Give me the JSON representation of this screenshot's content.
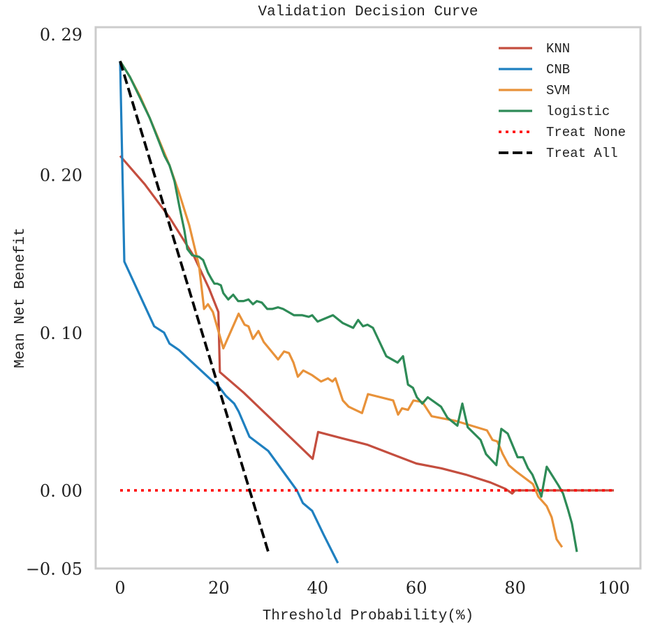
{
  "chart_data": {
    "type": "line",
    "title": "Validation Decision Curve",
    "xlabel": "Threshold Probability(%)",
    "ylabel": "Mean Net Benefit",
    "xlim": [
      -5,
      106
    ],
    "ylim": [
      -0.05,
      0.29
    ],
    "xticks": [
      0,
      20,
      40,
      60,
      80,
      100
    ],
    "xtick_labels": [
      "0",
      "20",
      "40",
      "60",
      "80",
      "100"
    ],
    "yticks": [
      -0.05,
      0.0,
      0.1,
      0.2,
      0.29
    ],
    "ytick_labels": [
      "−0. 05",
      "0. 00",
      "0. 10",
      "0. 20",
      "0. 29"
    ],
    "grid": false,
    "legend_position": "top-right",
    "series": [
      {
        "name": "KNN",
        "color": "#c44e3f",
        "style": "solid",
        "points": [
          [
            0,
            0.212
          ],
          [
            5,
            0.194
          ],
          [
            10,
            0.173
          ],
          [
            15,
            0.148
          ],
          [
            18,
            0.128
          ],
          [
            19.9,
            0.113
          ],
          [
            20.2,
            0.075
          ],
          [
            25,
            0.062
          ],
          [
            30,
            0.047
          ],
          [
            35,
            0.032
          ],
          [
            39,
            0.02
          ],
          [
            40.1,
            0.037
          ],
          [
            45,
            0.033
          ],
          [
            50,
            0.029
          ],
          [
            55,
            0.023
          ],
          [
            60,
            0.017
          ],
          [
            65,
            0.014
          ],
          [
            70,
            0.01
          ],
          [
            75,
            0.005
          ],
          [
            78,
            0.001
          ],
          [
            79.4,
            -0.002
          ],
          [
            80,
            0.0
          ],
          [
            100,
            0.0
          ]
        ]
      },
      {
        "name": "CNB",
        "color": "#1f80c0",
        "style": "solid",
        "points": [
          [
            0,
            0.272
          ],
          [
            0.85,
            0.145
          ],
          [
            6.9,
            0.104
          ],
          [
            8.9,
            0.1
          ],
          [
            10,
            0.093
          ],
          [
            11.9,
            0.089
          ],
          [
            18.1,
            0.071
          ],
          [
            20.2,
            0.065
          ],
          [
            21.4,
            0.06
          ],
          [
            23.1,
            0.055
          ],
          [
            24,
            0.05
          ],
          [
            26.2,
            0.034
          ],
          [
            30,
            0.025
          ],
          [
            35.8,
            0.0
          ],
          [
            37,
            -0.008
          ],
          [
            38.9,
            -0.013
          ],
          [
            41.2,
            -0.028
          ],
          [
            44.1,
            -0.046
          ]
        ]
      },
      {
        "name": "SVM",
        "color": "#e8923a",
        "style": "solid",
        "points": [
          [
            0,
            0.272
          ],
          [
            2,
            0.262
          ],
          [
            4,
            0.25
          ],
          [
            6,
            0.236
          ],
          [
            8,
            0.221
          ],
          [
            10,
            0.206
          ],
          [
            12,
            0.188
          ],
          [
            14,
            0.168
          ],
          [
            16,
            0.142
          ],
          [
            17,
            0.115
          ],
          [
            17.8,
            0.118
          ],
          [
            18.8,
            0.113
          ],
          [
            20.9,
            0.09
          ],
          [
            24,
            0.112
          ],
          [
            25.2,
            0.105
          ],
          [
            26,
            0.104
          ],
          [
            26.9,
            0.096
          ],
          [
            28,
            0.101
          ],
          [
            29.1,
            0.094
          ],
          [
            32,
            0.083
          ],
          [
            33.2,
            0.088
          ],
          [
            34.2,
            0.087
          ],
          [
            35.1,
            0.081
          ],
          [
            36,
            0.072
          ],
          [
            37.1,
            0.076
          ],
          [
            38.9,
            0.073
          ],
          [
            40.7,
            0.069
          ],
          [
            42.1,
            0.071
          ],
          [
            43,
            0.069
          ],
          [
            43.6,
            0.071
          ],
          [
            45.1,
            0.057
          ],
          [
            46.3,
            0.053
          ],
          [
            49,
            0.049
          ],
          [
            50.2,
            0.061
          ],
          [
            55.3,
            0.057
          ],
          [
            56.3,
            0.048
          ],
          [
            57.1,
            0.052
          ],
          [
            58.3,
            0.051
          ],
          [
            59.4,
            0.057
          ],
          [
            61.2,
            0.056
          ],
          [
            63.1,
            0.047
          ],
          [
            68,
            0.044
          ],
          [
            74.3,
            0.038
          ],
          [
            75.4,
            0.032
          ],
          [
            76.4,
            0.031
          ],
          [
            77.5,
            0.023
          ],
          [
            78.7,
            0.016
          ],
          [
            80.2,
            0.012
          ],
          [
            83.6,
            0.004
          ],
          [
            84.7,
            -0.004
          ],
          [
            86.4,
            -0.01
          ],
          [
            87.4,
            -0.017
          ],
          [
            88.4,
            -0.031
          ],
          [
            89.5,
            -0.036
          ]
        ]
      },
      {
        "name": "logistic",
        "color": "#2e8b57",
        "style": "solid",
        "points": [
          [
            0,
            0.272
          ],
          [
            2,
            0.262
          ],
          [
            4,
            0.249
          ],
          [
            6,
            0.236
          ],
          [
            8,
            0.22
          ],
          [
            9,
            0.212
          ],
          [
            10,
            0.206
          ],
          [
            11,
            0.196
          ],
          [
            12,
            0.18
          ],
          [
            13,
            0.165
          ],
          [
            13.6,
            0.153
          ],
          [
            14.6,
            0.149
          ],
          [
            16,
            0.148
          ],
          [
            16.8,
            0.146
          ],
          [
            17.8,
            0.138
          ],
          [
            18.5,
            0.134
          ],
          [
            19.1,
            0.131
          ],
          [
            19.7,
            0.131
          ],
          [
            20.4,
            0.13
          ],
          [
            20.9,
            0.125
          ],
          [
            21.9,
            0.121
          ],
          [
            22.9,
            0.124
          ],
          [
            23.9,
            0.12
          ],
          [
            25,
            0.12
          ],
          [
            26,
            0.121
          ],
          [
            26.9,
            0.118
          ],
          [
            27.7,
            0.12
          ],
          [
            28.7,
            0.119
          ],
          [
            29.8,
            0.115
          ],
          [
            30.8,
            0.115
          ],
          [
            32,
            0.116
          ],
          [
            33,
            0.115
          ],
          [
            35.2,
            0.111
          ],
          [
            36.9,
            0.111
          ],
          [
            38.2,
            0.11
          ],
          [
            38.9,
            0.111
          ],
          [
            40,
            0.107
          ],
          [
            43.1,
            0.111
          ],
          [
            45.1,
            0.106
          ],
          [
            47.2,
            0.103
          ],
          [
            48.2,
            0.108
          ],
          [
            49.2,
            0.104
          ],
          [
            50.1,
            0.105
          ],
          [
            51.2,
            0.103
          ],
          [
            53.9,
            0.085
          ],
          [
            56.2,
            0.081
          ],
          [
            57.3,
            0.085
          ],
          [
            58.3,
            0.067
          ],
          [
            59.3,
            0.065
          ],
          [
            60.1,
            0.059
          ],
          [
            61.2,
            0.055
          ],
          [
            62.3,
            0.059
          ],
          [
            65,
            0.053
          ],
          [
            66.3,
            0.046
          ],
          [
            68.3,
            0.041
          ],
          [
            69.3,
            0.055
          ],
          [
            70.4,
            0.04
          ],
          [
            73,
            0.032
          ],
          [
            74.1,
            0.023
          ],
          [
            76.2,
            0.016
          ],
          [
            77.2,
            0.039
          ],
          [
            78.5,
            0.036
          ],
          [
            80.5,
            0.021
          ],
          [
            81.6,
            0.021
          ],
          [
            82.6,
            0.014
          ],
          [
            83.5,
            0.01
          ],
          [
            85.3,
            -0.004
          ],
          [
            86.4,
            0.015
          ],
          [
            88.8,
            0.003
          ],
          [
            89.7,
            -0.002
          ],
          [
            90.7,
            -0.012
          ],
          [
            91.5,
            -0.021
          ],
          [
            92.5,
            -0.039
          ]
        ]
      },
      {
        "name": "Treat None",
        "color": "#ff0000",
        "style": "dotted",
        "points": [
          [
            0,
            0.0
          ],
          [
            100,
            0.0
          ]
        ]
      },
      {
        "name": "Treat All",
        "color": "#000000",
        "style": "dashed",
        "points": [
          [
            0,
            0.272
          ],
          [
            30,
            -0.039
          ]
        ]
      }
    ]
  }
}
